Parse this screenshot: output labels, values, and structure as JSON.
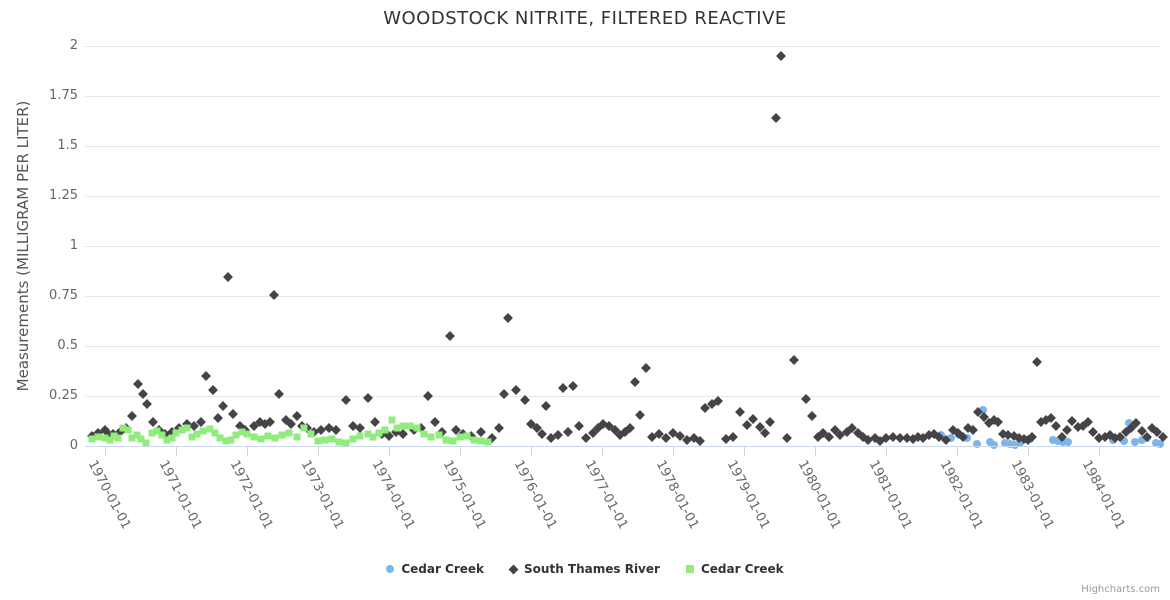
{
  "title": "WOODSTOCK NITRITE, FILTERED REACTIVE",
  "y_axis": {
    "title": "Measurements (MILLIGRAM PER LITER)"
  },
  "credits": "Highcharts.com",
  "colors": {
    "cedar_creek_blue": "#7cb5ec",
    "south_thames": "#434348",
    "cedar_creek_green": "#90ed7d",
    "grid": "#e6e6e6",
    "axis_line": "#ccd6eb",
    "label": "#666666",
    "title_text": "#333333"
  },
  "legend": [
    {
      "label": "Cedar Creek",
      "marker": "circle",
      "color": "#7cb5ec"
    },
    {
      "label": "South Thames River",
      "marker": "diamond",
      "color": "#434348"
    },
    {
      "label": "Cedar Creek",
      "marker": "square",
      "color": "#90ed7d"
    }
  ],
  "chart_data": {
    "type": "scatter",
    "title": "WOODSTOCK NITRITE, FILTERED REACTIVE",
    "xlabel": "",
    "ylabel": "Measurements (MILLIGRAM PER LITER)",
    "ylim": [
      0,
      2
    ],
    "xlim": [
      1969.72,
      1984.86
    ],
    "y_ticks": [
      0,
      0.25,
      0.5,
      0.75,
      1,
      1.25,
      1.5,
      1.75,
      2
    ],
    "y_tick_labels": [
      "0",
      "0.25",
      "0.5",
      "0.75",
      "1",
      "1.25",
      "1.5",
      "1.75",
      "2"
    ],
    "x_ticks": [
      1970,
      1971,
      1972,
      1973,
      1974,
      1975,
      1976,
      1977,
      1978,
      1979,
      1980,
      1981,
      1982,
      1983,
      1984
    ],
    "x_tick_labels": [
      "1970-01-01",
      "1971-01-01",
      "1972-01-01",
      "1973-01-01",
      "1974-01-01",
      "1975-01-01",
      "1976-01-01",
      "1977-01-01",
      "1978-01-01",
      "1979-01-01",
      "1980-01-01",
      "1981-01-01",
      "1982-01-01",
      "1983-01-01",
      "1984-01-01"
    ],
    "grid": true,
    "legend_position": "bottom",
    "series": [
      {
        "name": "Cedar Creek",
        "marker": "circle",
        "color": "#7cb5ec",
        "points": [
          [
            1981.78,
            0.055
          ],
          [
            1981.92,
            0.04
          ],
          [
            1982.03,
            0.055
          ],
          [
            1982.14,
            0.04
          ],
          [
            1982.28,
            0.01
          ],
          [
            1982.37,
            0.18
          ],
          [
            1982.46,
            0.02
          ],
          [
            1982.52,
            0.005
          ],
          [
            1982.68,
            0.015
          ],
          [
            1982.75,
            0.01
          ],
          [
            1982.82,
            0.005
          ],
          [
            1982.89,
            0.015
          ],
          [
            1983.03,
            0.035
          ],
          [
            1983.35,
            0.03
          ],
          [
            1983.42,
            0.025
          ],
          [
            1983.49,
            0.02
          ],
          [
            1983.56,
            0.02
          ],
          [
            1984.2,
            0.03
          ],
          [
            1984.35,
            0.025
          ],
          [
            1984.43,
            0.115
          ],
          [
            1984.51,
            0.02
          ],
          [
            1984.61,
            0.03
          ],
          [
            1984.68,
            0.04
          ],
          [
            1984.8,
            0.015
          ],
          [
            1984.86,
            0.01
          ]
        ]
      },
      {
        "name": "South Thames River",
        "marker": "diamond",
        "color": "#434348",
        "points": [
          [
            1969.82,
            0.05
          ],
          [
            1969.9,
            0.065
          ],
          [
            1970.0,
            0.08
          ],
          [
            1970.06,
            0.055
          ],
          [
            1970.12,
            0.06
          ],
          [
            1970.21,
            0.07
          ],
          [
            1970.3,
            0.09
          ],
          [
            1970.38,
            0.15
          ],
          [
            1970.46,
            0.31
          ],
          [
            1970.53,
            0.26
          ],
          [
            1970.6,
            0.21
          ],
          [
            1970.68,
            0.12
          ],
          [
            1970.76,
            0.08
          ],
          [
            1970.85,
            0.06
          ],
          [
            1970.95,
            0.07
          ],
          [
            1971.05,
            0.09
          ],
          [
            1971.15,
            0.11
          ],
          [
            1971.25,
            0.1
          ],
          [
            1971.35,
            0.12
          ],
          [
            1971.42,
            0.35
          ],
          [
            1971.52,
            0.28
          ],
          [
            1971.6,
            0.14
          ],
          [
            1971.66,
            0.2
          ],
          [
            1971.73,
            0.845
          ],
          [
            1971.81,
            0.16
          ],
          [
            1971.9,
            0.1
          ],
          [
            1971.97,
            0.08
          ],
          [
            1972.1,
            0.1
          ],
          [
            1972.18,
            0.12
          ],
          [
            1972.25,
            0.11
          ],
          [
            1972.32,
            0.12
          ],
          [
            1972.38,
            0.755
          ],
          [
            1972.45,
            0.26
          ],
          [
            1972.55,
            0.13
          ],
          [
            1972.62,
            0.11
          ],
          [
            1972.7,
            0.15
          ],
          [
            1972.78,
            0.1
          ],
          [
            1972.85,
            0.09
          ],
          [
            1972.95,
            0.07
          ],
          [
            1973.05,
            0.08
          ],
          [
            1973.15,
            0.09
          ],
          [
            1973.25,
            0.08
          ],
          [
            1973.39,
            0.23
          ],
          [
            1973.5,
            0.1
          ],
          [
            1973.6,
            0.09
          ],
          [
            1973.7,
            0.24
          ],
          [
            1973.8,
            0.12
          ],
          [
            1973.9,
            0.06
          ],
          [
            1974.0,
            0.05
          ],
          [
            1974.1,
            0.07
          ],
          [
            1974.2,
            0.06
          ],
          [
            1974.35,
            0.08
          ],
          [
            1974.45,
            0.09
          ],
          [
            1974.55,
            0.25
          ],
          [
            1974.65,
            0.12
          ],
          [
            1974.75,
            0.07
          ],
          [
            1974.86,
            0.55
          ],
          [
            1974.95,
            0.08
          ],
          [
            1975.05,
            0.06
          ],
          [
            1975.15,
            0.05
          ],
          [
            1975.3,
            0.07
          ],
          [
            1975.45,
            0.04
          ],
          [
            1975.55,
            0.09
          ],
          [
            1975.62,
            0.26
          ],
          [
            1975.68,
            0.64
          ],
          [
            1975.79,
            0.28
          ],
          [
            1975.92,
            0.23
          ],
          [
            1976.0,
            0.11
          ],
          [
            1976.08,
            0.09
          ],
          [
            1976.15,
            0.06
          ],
          [
            1976.21,
            0.2
          ],
          [
            1976.28,
            0.04
          ],
          [
            1976.38,
            0.055
          ],
          [
            1976.45,
            0.29
          ],
          [
            1976.52,
            0.07
          ],
          [
            1976.59,
            0.3
          ],
          [
            1976.68,
            0.1
          ],
          [
            1976.78,
            0.04
          ],
          [
            1976.88,
            0.065
          ],
          [
            1976.95,
            0.09
          ],
          [
            1977.02,
            0.11
          ],
          [
            1977.1,
            0.1
          ],
          [
            1977.18,
            0.08
          ],
          [
            1977.25,
            0.055
          ],
          [
            1977.32,
            0.07
          ],
          [
            1977.4,
            0.09
          ],
          [
            1977.46,
            0.32
          ],
          [
            1977.54,
            0.155
          ],
          [
            1977.62,
            0.39
          ],
          [
            1977.7,
            0.045
          ],
          [
            1977.8,
            0.06
          ],
          [
            1977.9,
            0.04
          ],
          [
            1978.0,
            0.065
          ],
          [
            1978.1,
            0.05
          ],
          [
            1978.2,
            0.03
          ],
          [
            1978.3,
            0.04
          ],
          [
            1978.38,
            0.025
          ],
          [
            1978.45,
            0.19
          ],
          [
            1978.55,
            0.21
          ],
          [
            1978.64,
            0.225
          ],
          [
            1978.75,
            0.035
          ],
          [
            1978.85,
            0.045
          ],
          [
            1978.95,
            0.17
          ],
          [
            1979.05,
            0.105
          ],
          [
            1979.13,
            0.135
          ],
          [
            1979.22,
            0.095
          ],
          [
            1979.3,
            0.065
          ],
          [
            1979.37,
            0.12
          ],
          [
            1979.45,
            1.64
          ],
          [
            1979.52,
            1.95
          ],
          [
            1979.6,
            0.04
          ],
          [
            1979.7,
            0.43
          ],
          [
            1979.87,
            0.235
          ],
          [
            1979.96,
            0.15
          ],
          [
            1980.05,
            0.045
          ],
          [
            1980.12,
            0.065
          ],
          [
            1980.2,
            0.045
          ],
          [
            1980.28,
            0.08
          ],
          [
            1980.35,
            0.055
          ],
          [
            1980.45,
            0.07
          ],
          [
            1980.52,
            0.09
          ],
          [
            1980.6,
            0.065
          ],
          [
            1980.68,
            0.045
          ],
          [
            1980.75,
            0.03
          ],
          [
            1980.85,
            0.04
          ],
          [
            1980.92,
            0.025
          ],
          [
            1981.0,
            0.04
          ],
          [
            1981.1,
            0.045
          ],
          [
            1981.2,
            0.04
          ],
          [
            1981.3,
            0.04
          ],
          [
            1981.38,
            0.035
          ],
          [
            1981.45,
            0.045
          ],
          [
            1981.52,
            0.04
          ],
          [
            1981.6,
            0.055
          ],
          [
            1981.68,
            0.06
          ],
          [
            1981.75,
            0.045
          ],
          [
            1981.85,
            0.03
          ],
          [
            1981.95,
            0.08
          ],
          [
            1982.02,
            0.065
          ],
          [
            1982.08,
            0.045
          ],
          [
            1982.15,
            0.09
          ],
          [
            1982.22,
            0.08
          ],
          [
            1982.3,
            0.17
          ],
          [
            1982.38,
            0.145
          ],
          [
            1982.45,
            0.115
          ],
          [
            1982.52,
            0.13
          ],
          [
            1982.58,
            0.12
          ],
          [
            1982.65,
            0.06
          ],
          [
            1982.72,
            0.055
          ],
          [
            1982.8,
            0.05
          ],
          [
            1982.88,
            0.04
          ],
          [
            1982.95,
            0.035
          ],
          [
            1983.0,
            0.03
          ],
          [
            1983.06,
            0.045
          ],
          [
            1983.13,
            0.42
          ],
          [
            1983.18,
            0.12
          ],
          [
            1983.25,
            0.13
          ],
          [
            1983.32,
            0.14
          ],
          [
            1983.4,
            0.1
          ],
          [
            1983.48,
            0.045
          ],
          [
            1983.55,
            0.08
          ],
          [
            1983.62,
            0.125
          ],
          [
            1983.7,
            0.095
          ],
          [
            1983.78,
            0.1
          ],
          [
            1983.85,
            0.12
          ],
          [
            1983.92,
            0.07
          ],
          [
            1984.0,
            0.04
          ],
          [
            1984.08,
            0.045
          ],
          [
            1984.15,
            0.055
          ],
          [
            1984.22,
            0.04
          ],
          [
            1984.3,
            0.045
          ],
          [
            1984.38,
            0.07
          ],
          [
            1984.45,
            0.09
          ],
          [
            1984.52,
            0.115
          ],
          [
            1984.6,
            0.075
          ],
          [
            1984.68,
            0.045
          ],
          [
            1984.75,
            0.09
          ],
          [
            1984.82,
            0.07
          ],
          [
            1984.9,
            0.045
          ]
        ]
      },
      {
        "name": "Cedar Creek",
        "marker": "square",
        "color": "#90ed7d",
        "points": [
          [
            1969.82,
            0.035
          ],
          [
            1969.9,
            0.045
          ],
          [
            1970.0,
            0.04
          ],
          [
            1970.07,
            0.03
          ],
          [
            1970.13,
            0.05
          ],
          [
            1970.19,
            0.04
          ],
          [
            1970.26,
            0.09
          ],
          [
            1970.32,
            0.08
          ],
          [
            1970.38,
            0.04
          ],
          [
            1970.45,
            0.055
          ],
          [
            1970.51,
            0.035
          ],
          [
            1970.58,
            0.015
          ],
          [
            1970.67,
            0.065
          ],
          [
            1970.73,
            0.075
          ],
          [
            1970.8,
            0.055
          ],
          [
            1970.87,
            0.03
          ],
          [
            1970.94,
            0.04
          ],
          [
            1971.0,
            0.065
          ],
          [
            1971.08,
            0.08
          ],
          [
            1971.15,
            0.09
          ],
          [
            1971.23,
            0.045
          ],
          [
            1971.3,
            0.06
          ],
          [
            1971.38,
            0.075
          ],
          [
            1971.48,
            0.085
          ],
          [
            1971.55,
            0.065
          ],
          [
            1971.62,
            0.04
          ],
          [
            1971.7,
            0.025
          ],
          [
            1971.78,
            0.03
          ],
          [
            1971.85,
            0.055
          ],
          [
            1971.93,
            0.07
          ],
          [
            1972.0,
            0.06
          ],
          [
            1972.1,
            0.045
          ],
          [
            1972.2,
            0.035
          ],
          [
            1972.3,
            0.05
          ],
          [
            1972.4,
            0.04
          ],
          [
            1972.5,
            0.055
          ],
          [
            1972.6,
            0.065
          ],
          [
            1972.7,
            0.045
          ],
          [
            1972.8,
            0.09
          ],
          [
            1972.9,
            0.06
          ],
          [
            1973.0,
            0.025
          ],
          [
            1973.1,
            0.03
          ],
          [
            1973.2,
            0.035
          ],
          [
            1973.3,
            0.02
          ],
          [
            1973.4,
            0.015
          ],
          [
            1973.5,
            0.035
          ],
          [
            1973.6,
            0.05
          ],
          [
            1973.7,
            0.06
          ],
          [
            1973.78,
            0.045
          ],
          [
            1973.86,
            0.065
          ],
          [
            1973.95,
            0.08
          ],
          [
            1974.04,
            0.13
          ],
          [
            1974.12,
            0.09
          ],
          [
            1974.2,
            0.1
          ],
          [
            1974.3,
            0.1
          ],
          [
            1974.4,
            0.09
          ],
          [
            1974.5,
            0.06
          ],
          [
            1974.6,
            0.045
          ],
          [
            1974.7,
            0.055
          ],
          [
            1974.8,
            0.03
          ],
          [
            1974.9,
            0.025
          ],
          [
            1975.0,
            0.045
          ],
          [
            1975.1,
            0.05
          ],
          [
            1975.2,
            0.03
          ],
          [
            1975.3,
            0.025
          ],
          [
            1975.4,
            0.02
          ]
        ]
      }
    ]
  }
}
